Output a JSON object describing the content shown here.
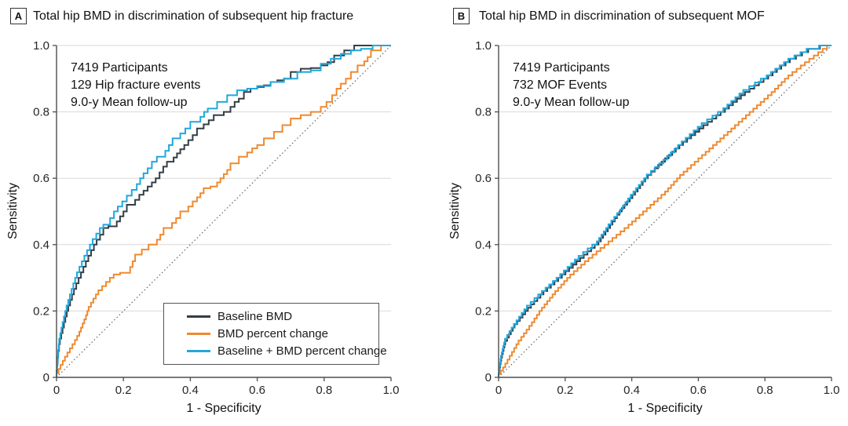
{
  "figure": {
    "background": "#ffffff",
    "text_color": "#111111",
    "axis_color": "#4d4d4d",
    "grid_color": "#d9d9d9",
    "reference_line": {
      "style": "dotted",
      "color": "#4d4d4d"
    }
  },
  "chart_data": [
    {
      "type": "line",
      "subtype": "roc-curve",
      "panel_label": "A",
      "title": "Total hip BMD in discrimination of subsequent hip fracture",
      "annotation": [
        "7419 Participants",
        "129 Hip fracture events",
        "9.0-y Mean follow-up"
      ],
      "xlabel": "1 - Specificity",
      "ylabel": "Sensitivity",
      "xlim": [
        0,
        1
      ],
      "ylim": [
        0,
        1
      ],
      "xticks": {
        "values": [
          0,
          0.2,
          0.4,
          0.6,
          0.8,
          1.0
        ],
        "labels": [
          "0",
          "0.2",
          "0.4",
          "0.6",
          "0.8",
          "1.0"
        ]
      },
      "yticks": {
        "values": [
          0,
          0.2,
          0.4,
          0.6,
          0.8,
          1.0
        ],
        "labels": [
          "0",
          "0.2",
          "0.4",
          "0.6",
          "0.8",
          "1.0"
        ]
      },
      "gridlines_y": [
        0.2,
        0.4,
        0.6,
        0.8,
        1.0
      ],
      "diagonal_reference": true,
      "legend": {
        "position": "lower right",
        "entries": [
          "Baseline BMD",
          "BMD percent change",
          "Baseline + BMD percent change"
        ]
      },
      "series": [
        {
          "name": "Baseline BMD",
          "color": "#333E46",
          "interp": "step",
          "points": [
            [
              0,
              0
            ],
            [
              0.005,
              0.06
            ],
            [
              0.01,
              0.1
            ],
            [
              0.022,
              0.15
            ],
            [
              0.035,
              0.2
            ],
            [
              0.052,
              0.25
            ],
            [
              0.073,
              0.3
            ],
            [
              0.095,
              0.35
            ],
            [
              0.12,
              0.4
            ],
            [
              0.14,
              0.43
            ],
            [
              0.155,
              0.45
            ],
            [
              0.18,
              0.455
            ],
            [
              0.21,
              0.5
            ],
            [
              0.235,
              0.52
            ],
            [
              0.26,
              0.55
            ],
            [
              0.285,
              0.575
            ],
            [
              0.308,
              0.6
            ],
            [
              0.33,
              0.635
            ],
            [
              0.35,
              0.65
            ],
            [
              0.37,
              0.675
            ],
            [
              0.394,
              0.7
            ],
            [
              0.42,
              0.73
            ],
            [
              0.44,
              0.75
            ],
            [
              0.47,
              0.775
            ],
            [
              0.5,
              0.79
            ],
            [
              0.52,
              0.8
            ],
            [
              0.545,
              0.83
            ],
            [
              0.56,
              0.84
            ],
            [
              0.58,
              0.86
            ],
            [
              0.6,
              0.87
            ],
            [
              0.62,
              0.875
            ],
            [
              0.64,
              0.88
            ],
            [
              0.66,
              0.89
            ],
            [
              0.68,
              0.895
            ],
            [
              0.7,
              0.9
            ],
            [
              0.73,
              0.92
            ],
            [
              0.76,
              0.93
            ],
            [
              0.79,
              0.932
            ],
            [
              0.81,
              0.94
            ],
            [
              0.83,
              0.95
            ],
            [
              0.86,
              0.97
            ],
            [
              0.89,
              0.985
            ],
            [
              0.92,
              1.0
            ],
            [
              1,
              1
            ]
          ]
        },
        {
          "name": "BMD percent change",
          "color": "#EE8A31",
          "interp": "step",
          "points": [
            [
              0,
              0
            ],
            [
              0.012,
              0.025
            ],
            [
              0.025,
              0.05
            ],
            [
              0.04,
              0.075
            ],
            [
              0.055,
              0.1
            ],
            [
              0.068,
              0.125
            ],
            [
              0.078,
              0.15
            ],
            [
              0.088,
              0.175
            ],
            [
              0.096,
              0.2
            ],
            [
              0.11,
              0.225
            ],
            [
              0.125,
              0.25
            ],
            [
              0.148,
              0.275
            ],
            [
              0.171,
              0.3
            ],
            [
              0.19,
              0.31
            ],
            [
              0.22,
              0.315
            ],
            [
              0.235,
              0.35
            ],
            [
              0.255,
              0.37
            ],
            [
              0.275,
              0.385
            ],
            [
              0.3,
              0.4
            ],
            [
              0.32,
              0.43
            ],
            [
              0.345,
              0.45
            ],
            [
              0.37,
              0.48
            ],
            [
              0.394,
              0.5
            ],
            [
              0.42,
              0.53
            ],
            [
              0.44,
              0.555
            ],
            [
              0.46,
              0.57
            ],
            [
              0.48,
              0.575
            ],
            [
              0.5,
              0.6
            ],
            [
              0.52,
              0.625
            ],
            [
              0.545,
              0.645
            ],
            [
              0.57,
              0.665
            ],
            [
              0.6,
              0.69
            ],
            [
              0.62,
              0.7
            ],
            [
              0.65,
              0.72
            ],
            [
              0.675,
              0.74
            ],
            [
              0.7,
              0.76
            ],
            [
              0.73,
              0.78
            ],
            [
              0.76,
              0.79
            ],
            [
              0.79,
              0.8
            ],
            [
              0.824,
              0.83
            ],
            [
              0.85,
              0.87
            ],
            [
              0.88,
              0.9
            ],
            [
              0.9,
              0.92
            ],
            [
              0.92,
              0.94
            ],
            [
              0.94,
              0.965
            ],
            [
              0.97,
              0.985
            ],
            [
              1,
              1
            ]
          ]
        },
        {
          "name": "Baseline + BMD percent change",
          "color": "#22A7DC",
          "interp": "step",
          "points": [
            [
              0,
              0
            ],
            [
              0.004,
              0.05
            ],
            [
              0.008,
              0.1
            ],
            [
              0.018,
              0.15
            ],
            [
              0.03,
              0.2
            ],
            [
              0.045,
              0.25
            ],
            [
              0.061,
              0.3
            ],
            [
              0.083,
              0.35
            ],
            [
              0.108,
              0.4
            ],
            [
              0.14,
              0.45
            ],
            [
              0.16,
              0.46
            ],
            [
              0.183,
              0.5
            ],
            [
              0.21,
              0.53
            ],
            [
              0.24,
              0.565
            ],
            [
              0.26,
              0.6
            ],
            [
              0.285,
              0.63
            ],
            [
              0.3,
              0.65
            ],
            [
              0.325,
              0.665
            ],
            [
              0.347,
              0.7
            ],
            [
              0.37,
              0.72
            ],
            [
              0.4,
              0.75
            ],
            [
              0.43,
              0.77
            ],
            [
              0.452,
              0.8
            ],
            [
              0.48,
              0.81
            ],
            [
              0.51,
              0.83
            ],
            [
              0.54,
              0.85
            ],
            [
              0.57,
              0.865
            ],
            [
              0.6,
              0.87
            ],
            [
              0.64,
              0.878
            ],
            [
              0.68,
              0.89
            ],
            [
              0.72,
              0.9
            ],
            [
              0.76,
              0.92
            ],
            [
              0.79,
              0.925
            ],
            [
              0.82,
              0.945
            ],
            [
              0.85,
              0.96
            ],
            [
              0.88,
              0.975
            ],
            [
              0.91,
              0.985
            ],
            [
              0.945,
              0.99
            ],
            [
              0.96,
              1.0
            ],
            [
              1,
              1
            ]
          ]
        }
      ]
    },
    {
      "type": "line",
      "subtype": "roc-curve",
      "panel_label": "B",
      "title": "Total hip BMD in discrimination of subsequent MOF",
      "annotation": [
        "7419 Participants",
        "732 MOF Events",
        "9.0-y Mean follow-up"
      ],
      "xlabel": "1 - Specificity",
      "ylabel": "Sensitivity",
      "xlim": [
        0,
        1
      ],
      "ylim": [
        0,
        1
      ],
      "xticks": {
        "values": [
          0,
          0.2,
          0.4,
          0.6,
          0.8,
          1.0
        ],
        "labels": [
          "0",
          "0.2",
          "0.4",
          "0.6",
          "0.8",
          "1.0"
        ]
      },
      "yticks": {
        "values": [
          0,
          0.2,
          0.4,
          0.6,
          0.8,
          1.0
        ],
        "labels": [
          "0",
          "0.2",
          "0.4",
          "0.6",
          "0.8",
          "1.0"
        ]
      },
      "gridlines_y": [
        0.2,
        0.4,
        0.6,
        0.8,
        1.0
      ],
      "diagonal_reference": true,
      "legend": null,
      "series": [
        {
          "name": "Baseline BMD",
          "color": "#333E46",
          "interp": "step",
          "points": [
            [
              0,
              0
            ],
            [
              0.008,
              0.05
            ],
            [
              0.02,
              0.1
            ],
            [
              0.048,
              0.15
            ],
            [
              0.088,
              0.2
            ],
            [
              0.135,
              0.25
            ],
            [
              0.19,
              0.3
            ],
            [
              0.245,
              0.35
            ],
            [
              0.3,
              0.4
            ],
            [
              0.335,
              0.45
            ],
            [
              0.37,
              0.5
            ],
            [
              0.41,
              0.55
            ],
            [
              0.448,
              0.6
            ],
            [
              0.5,
              0.65
            ],
            [
              0.554,
              0.7
            ],
            [
              0.615,
              0.75
            ],
            [
              0.68,
              0.8
            ],
            [
              0.74,
              0.85
            ],
            [
              0.81,
              0.9
            ],
            [
              0.875,
              0.95
            ],
            [
              0.93,
              0.98
            ],
            [
              1,
              1
            ]
          ]
        },
        {
          "name": "BMD percent change",
          "color": "#EE8A31",
          "interp": "step",
          "points": [
            [
              0,
              0
            ],
            [
              0.02,
              0.03
            ],
            [
              0.06,
              0.1
            ],
            [
              0.1,
              0.155
            ],
            [
              0.13,
              0.2
            ],
            [
              0.17,
              0.25
            ],
            [
              0.215,
              0.3
            ],
            [
              0.27,
              0.35
            ],
            [
              0.33,
              0.4
            ],
            [
              0.39,
              0.45
            ],
            [
              0.445,
              0.5
            ],
            [
              0.5,
              0.55
            ],
            [
              0.545,
              0.6
            ],
            [
              0.6,
              0.65
            ],
            [
              0.655,
              0.7
            ],
            [
              0.71,
              0.75
            ],
            [
              0.765,
              0.8
            ],
            [
              0.82,
              0.85
            ],
            [
              0.87,
              0.9
            ],
            [
              0.92,
              0.94
            ],
            [
              0.96,
              0.97
            ],
            [
              1,
              1
            ]
          ]
        },
        {
          "name": "Baseline + BMD percent change",
          "color": "#22A7DC",
          "interp": "step",
          "points": [
            [
              0,
              0
            ],
            [
              0.007,
              0.055
            ],
            [
              0.019,
              0.105
            ],
            [
              0.046,
              0.15
            ],
            [
              0.085,
              0.205
            ],
            [
              0.13,
              0.25
            ],
            [
              0.185,
              0.3
            ],
            [
              0.24,
              0.355
            ],
            [
              0.295,
              0.4
            ],
            [
              0.33,
              0.45
            ],
            [
              0.365,
              0.495
            ],
            [
              0.405,
              0.55
            ],
            [
              0.445,
              0.6
            ],
            [
              0.495,
              0.645
            ],
            [
              0.55,
              0.7
            ],
            [
              0.61,
              0.755
            ],
            [
              0.675,
              0.8
            ],
            [
              0.735,
              0.855
            ],
            [
              0.805,
              0.9
            ],
            [
              0.87,
              0.95
            ],
            [
              0.925,
              0.98
            ],
            [
              1,
              1
            ]
          ]
        }
      ]
    }
  ]
}
